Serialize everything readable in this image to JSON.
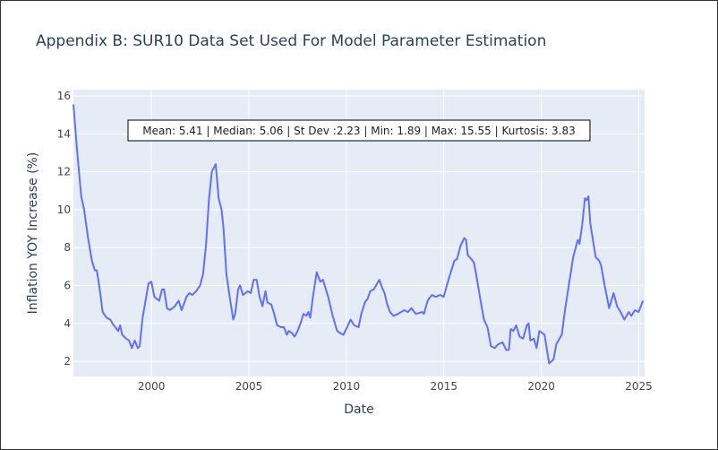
{
  "chart_data": {
    "type": "line",
    "title": "Appendix B: SUR10 Data Set Used For Model Parameter Estimation",
    "x_label": "Date",
    "y_label": "Inflation YOY Increase (%)",
    "annotation": "Mean: 5.41 | Median: 5.06 | St Dev :2.23 | Min: 1.89 | Max: 15.55 | Kurtosis: 3.83",
    "xlim": [
      1996.0,
      2025.3
    ],
    "ylim": [
      1.2,
      16.33
    ],
    "xticks": [
      2000,
      2005,
      2010,
      2015,
      2020,
      2025
    ],
    "yticks": [
      2,
      4,
      6,
      8,
      10,
      12,
      14,
      16
    ],
    "grid": true,
    "series": [
      {
        "color": "#636efa",
        "x": [
          1996.0,
          1996.2,
          1996.4,
          1996.55,
          1996.75,
          1996.95,
          1997.1,
          1997.2,
          1997.35,
          1997.5,
          1997.7,
          1997.9,
          1998.0,
          1998.15,
          1998.3,
          1998.4,
          1998.5,
          1998.7,
          1998.85,
          1999.0,
          1999.15,
          1999.3,
          1999.4,
          1999.55,
          1999.7,
          1999.85,
          2000.0,
          2000.15,
          2000.4,
          2000.55,
          2000.65,
          2000.8,
          2000.95,
          2001.2,
          2001.4,
          2001.55,
          2001.8,
          2001.95,
          2002.1,
          2002.3,
          2002.5,
          2002.65,
          2002.8,
          2002.95,
          2003.1,
          2003.3,
          2003.45,
          2003.6,
          2003.7,
          2003.85,
          2004.0,
          2004.2,
          2004.3,
          2004.45,
          2004.55,
          2004.7,
          2004.95,
          2005.1,
          2005.25,
          2005.4,
          2005.55,
          2005.7,
          2005.85,
          2005.95,
          2006.15,
          2006.3,
          2006.45,
          2006.65,
          2006.8,
          2006.95,
          2007.05,
          2007.2,
          2007.35,
          2007.5,
          2007.65,
          2007.8,
          2007.95,
          2008.05,
          2008.15,
          2008.3,
          2008.48,
          2008.66,
          2008.8,
          2009.07,
          2009.3,
          2009.53,
          2009.67,
          2009.85,
          2010.04,
          2010.22,
          2010.4,
          2010.63,
          2010.77,
          2010.95,
          2011.09,
          2011.23,
          2011.41,
          2011.69,
          2011.83,
          2011.96,
          2012.1,
          2012.24,
          2012.42,
          2012.65,
          2012.97,
          2013.16,
          2013.34,
          2013.57,
          2013.89,
          2013.98,
          2014.17,
          2014.39,
          2014.58,
          2014.81,
          2014.99,
          2015.13,
          2015.27,
          2015.54,
          2015.68,
          2015.86,
          2016.05,
          2016.14,
          2016.23,
          2016.41,
          2016.55,
          2016.69,
          2016.87,
          2017.06,
          2017.24,
          2017.42,
          2017.61,
          2017.79,
          2018.02,
          2018.2,
          2018.34,
          2018.43,
          2018.57,
          2018.71,
          2018.89,
          2019.07,
          2019.26,
          2019.35,
          2019.44,
          2019.62,
          2019.76,
          2019.9,
          2020.17,
          2020.4,
          2020.63,
          2020.77,
          2021.05,
          2021.23,
          2021.41,
          2021.64,
          2021.87,
          2021.96,
          2022.1,
          2022.24,
          2022.33,
          2022.42,
          2022.51,
          2022.79,
          2022.97,
          2023.06,
          2023.25,
          2023.48,
          2023.71,
          2023.89,
          2024.07,
          2024.26,
          2024.49,
          2024.62,
          2024.81,
          2024.99,
          2025.22
        ],
        "values": [
          15.55,
          13.0,
          10.7,
          10.0,
          8.5,
          7.3,
          6.8,
          6.8,
          5.8,
          4.6,
          4.3,
          4.2,
          4.0,
          3.8,
          3.6,
          3.9,
          3.4,
          3.2,
          3.1,
          2.7,
          3.1,
          2.7,
          2.8,
          4.3,
          5.2,
          6.1,
          6.2,
          5.4,
          5.2,
          5.8,
          5.8,
          4.8,
          4.7,
          4.9,
          5.2,
          4.7,
          5.4,
          5.6,
          5.5,
          5.7,
          6.0,
          6.6,
          8.1,
          10.5,
          12.0,
          12.4,
          10.6,
          10.0,
          9.0,
          6.6,
          5.5,
          4.2,
          4.5,
          5.8,
          6.0,
          5.5,
          5.7,
          5.6,
          6.3,
          6.3,
          5.4,
          4.9,
          5.7,
          5.1,
          5.0,
          4.5,
          3.9,
          3.8,
          3.8,
          3.4,
          3.6,
          3.5,
          3.3,
          3.6,
          4.0,
          4.5,
          4.4,
          4.6,
          4.3,
          5.5,
          6.7,
          6.2,
          6.3,
          5.4,
          4.4,
          3.6,
          3.5,
          3.4,
          3.8,
          4.2,
          3.9,
          3.8,
          4.5,
          5.1,
          5.3,
          5.7,
          5.8,
          6.3,
          5.9,
          5.6,
          5.0,
          4.6,
          4.4,
          4.5,
          4.7,
          4.6,
          4.8,
          4.5,
          4.6,
          4.5,
          5.2,
          5.5,
          5.4,
          5.5,
          5.4,
          5.9,
          6.4,
          7.3,
          7.4,
          8.1,
          8.5,
          8.4,
          7.6,
          7.4,
          7.2,
          6.4,
          5.3,
          4.2,
          3.8,
          2.8,
          2.7,
          2.9,
          3.0,
          2.6,
          2.6,
          3.7,
          3.6,
          3.9,
          3.3,
          3.2,
          3.9,
          4.0,
          3.1,
          3.2,
          2.7,
          3.6,
          3.4,
          1.89,
          2.1,
          2.9,
          3.4,
          4.8,
          6.0,
          7.5,
          8.4,
          8.2,
          9.2,
          10.6,
          10.5,
          10.7,
          9.3,
          7.5,
          7.3,
          7.1,
          6.0,
          4.8,
          5.6,
          4.9,
          4.6,
          4.2,
          4.6,
          4.4,
          4.7,
          4.6,
          5.2
        ]
      }
    ]
  }
}
